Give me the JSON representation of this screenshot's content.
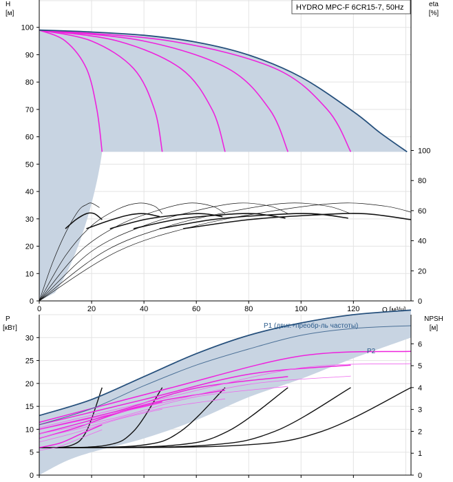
{
  "chart_data": [
    {
      "type": "line",
      "name": "head-curve-chart",
      "title": "HYDRO MPC-F 6CR15-7, 50Hz",
      "ylabel_left": {
        "name": "H",
        "unit": "[м]"
      },
      "ylabel_right": {
        "name": "eta",
        "unit": "[%]"
      },
      "xlabel": "Q [м³/ч]",
      "xlim": [
        0,
        142
      ],
      "ylim_left": [
        0,
        110
      ],
      "ylim_right": [
        0,
        100
      ],
      "y_right_range_on_left": [
        0,
        55
      ],
      "x_ticks": [
        0,
        20,
        40,
        60,
        80,
        100,
        120
      ],
      "y_ticks_left": [
        0,
        10,
        20,
        30,
        40,
        50,
        60,
        70,
        80,
        90,
        100
      ],
      "y_ticks_right": [
        0,
        20,
        40,
        60,
        80,
        100
      ],
      "head_envelope_max_curve": [
        [
          0,
          99
        ],
        [
          10,
          98.7
        ],
        [
          20,
          98.3
        ],
        [
          40,
          97.1
        ],
        [
          60,
          94.6
        ],
        [
          80,
          89.9
        ],
        [
          100,
          81.8
        ],
        [
          120,
          69.2
        ],
        [
          130,
          61.6
        ],
        [
          140.5,
          54.5
        ]
      ],
      "head_min_line": 54.5,
      "head_curves_pumps": [
        {
          "pumps": 1,
          "points": [
            [
              0,
              99
            ],
            [
              10,
              95
            ],
            [
              18,
              85
            ],
            [
              22,
              70
            ],
            [
              24,
              54.5
            ]
          ]
        },
        {
          "pumps": 2,
          "points": [
            [
              0,
              99
            ],
            [
              20,
              95
            ],
            [
              36,
              85
            ],
            [
              44,
              70
            ],
            [
              47,
              54.5
            ]
          ]
        },
        {
          "pumps": 3,
          "points": [
            [
              0,
              99
            ],
            [
              30,
              95
            ],
            [
              54,
              85
            ],
            [
              66,
              70
            ],
            [
              71,
              54.5
            ]
          ]
        },
        {
          "pumps": 4,
          "points": [
            [
              0,
              99
            ],
            [
              40,
              95
            ],
            [
              72,
              85
            ],
            [
              88,
              70
            ],
            [
              95,
              54.5
            ]
          ]
        },
        {
          "pumps": 5,
          "points": [
            [
              0,
              99
            ],
            [
              50,
              95
            ],
            [
              90,
              85
            ],
            [
              110,
              70
            ],
            [
              119,
              54.5
            ]
          ]
        }
      ],
      "efficiency_curves_percent": [
        {
          "series": "eta-max-1-pump",
          "points": [
            [
              0,
              0
            ],
            [
              5,
              25
            ],
            [
              10,
              45
            ],
            [
              15,
              60
            ],
            [
              18,
              64
            ],
            [
              20,
              65
            ],
            [
              23,
              62
            ]
          ]
        },
        {
          "series": "eta-1-pump",
          "points": [
            [
              10,
              48
            ],
            [
              14,
              54
            ],
            [
              18,
              58
            ],
            [
              21,
              58
            ],
            [
              24,
              54
            ]
          ]
        },
        {
          "series": "eta-max-2-pumps",
          "points": [
            [
              0,
              0
            ],
            [
              10,
              30
            ],
            [
              20,
              50
            ],
            [
              30,
              61
            ],
            [
              38,
              65
            ],
            [
              44,
              63
            ],
            [
              47,
              58
            ]
          ]
        },
        {
          "series": "eta-2-pumps",
          "points": [
            [
              18,
              48
            ],
            [
              26,
              53
            ],
            [
              34,
              57
            ],
            [
              40,
              58
            ],
            [
              46,
              56
            ]
          ]
        },
        {
          "series": "eta-max-3-pumps",
          "points": [
            [
              0,
              0
            ],
            [
              15,
              32
            ],
            [
              30,
              50
            ],
            [
              45,
              60
            ],
            [
              57,
              65
            ],
            [
              66,
              63
            ],
            [
              71,
              58
            ]
          ]
        },
        {
          "series": "eta-3-pumps",
          "points": [
            [
              27,
              48
            ],
            [
              40,
              54
            ],
            [
              52,
              57
            ],
            [
              62,
              58
            ],
            [
              70,
              56
            ]
          ]
        },
        {
          "series": "eta-max-4-pumps",
          "points": [
            [
              0,
              0
            ],
            [
              20,
              33
            ],
            [
              40,
              50
            ],
            [
              60,
              60
            ],
            [
              76,
              65
            ],
            [
              88,
              63
            ],
            [
              95,
              58
            ]
          ]
        },
        {
          "series": "eta-4-pumps",
          "points": [
            [
              36,
              48
            ],
            [
              52,
              54
            ],
            [
              68,
              57
            ],
            [
              82,
              58
            ],
            [
              94,
              55
            ]
          ]
        },
        {
          "series": "eta-max-5-pumps",
          "points": [
            [
              0,
              0
            ],
            [
              25,
              33
            ],
            [
              50,
              50
            ],
            [
              75,
              60
            ],
            [
              95,
              65
            ],
            [
              110,
              63
            ],
            [
              119,
              58
            ]
          ]
        },
        {
          "series": "eta-5-pumps",
          "points": [
            [
              46,
              48
            ],
            [
              66,
              54
            ],
            [
              86,
              57
            ],
            [
              104,
              58
            ],
            [
              118,
              55
            ]
          ]
        },
        {
          "series": "eta-max-6-pumps",
          "points": [
            [
              0,
              0
            ],
            [
              30,
              33
            ],
            [
              60,
              50
            ],
            [
              90,
              60
            ],
            [
              115,
              65
            ],
            [
              132,
              63
            ],
            [
              142,
              59
            ]
          ]
        },
        {
          "series": "eta-6-pumps",
          "points": [
            [
              55,
              48
            ],
            [
              80,
              54
            ],
            [
              104,
              57
            ],
            [
              124,
              58
            ],
            [
              142,
              54
            ]
          ]
        }
      ]
    },
    {
      "type": "line",
      "name": "power-npsh-chart",
      "ylabel_left": {
        "name": "P",
        "unit": "[кВт]"
      },
      "ylabel_right": {
        "name": "NPSH",
        "unit": "[м]"
      },
      "xlim": [
        0,
        142
      ],
      "ylim_left": [
        0,
        35
      ],
      "ylim_right": [
        0,
        7.33
      ],
      "y_ticks_left": [
        0,
        5,
        10,
        15,
        20,
        25,
        30
      ],
      "y_ticks_right": [
        0,
        1,
        2,
        3,
        4,
        5,
        6
      ],
      "annotations": [
        "P1 (двиг.+преобр-ль частоты)",
        "P2"
      ],
      "power_P1_envelope": [
        [
          0,
          13
        ],
        [
          20,
          16.5
        ],
        [
          40,
          21.5
        ],
        [
          60,
          26.5
        ],
        [
          80,
          30.5
        ],
        [
          100,
          33.2
        ],
        [
          120,
          35
        ],
        [
          142,
          36
        ]
      ],
      "power_P2_envelope": [
        [
          0,
          11
        ],
        [
          20,
          14.5
        ],
        [
          40,
          19.5
        ],
        [
          60,
          24
        ],
        [
          80,
          27.5
        ],
        [
          100,
          30.5
        ],
        [
          120,
          32
        ],
        [
          142,
          32.6
        ]
      ],
      "power_envelope_min": [
        [
          0,
          0
        ],
        [
          10,
          3
        ],
        [
          20,
          5
        ],
        [
          40,
          8
        ],
        [
          60,
          12
        ],
        [
          80,
          17
        ],
        [
          100,
          21
        ],
        [
          120,
          25.5
        ],
        [
          142,
          30
        ]
      ],
      "power_curves_pumps_P1": [
        {
          "pumps": 1,
          "points": [
            [
              0,
              6
            ],
            [
              8,
              7
            ],
            [
              16,
              9
            ],
            [
              24,
              11
            ]
          ]
        },
        {
          "pumps": 2,
          "points": [
            [
              0,
              8
            ],
            [
              15,
              10.5
            ],
            [
              30,
              13.5
            ],
            [
              47,
              16
            ]
          ]
        },
        {
          "pumps": 3,
          "points": [
            [
              0,
              9
            ],
            [
              20,
              12
            ],
            [
              45,
              16
            ],
            [
              71,
              18.5
            ]
          ]
        },
        {
          "pumps": 4,
          "points": [
            [
              0,
              10
            ],
            [
              30,
              14
            ],
            [
              60,
              19
            ],
            [
              95,
              21.5
            ]
          ]
        },
        {
          "pumps": 5,
          "points": [
            [
              0,
              11
            ],
            [
              40,
              16.5
            ],
            [
              80,
              22
            ],
            [
              119,
              24
            ]
          ]
        },
        {
          "pumps": 6,
          "points": [
            [
              0,
              11.5
            ],
            [
              50,
              19
            ],
            [
              100,
              26
            ],
            [
              142,
              27
            ]
          ]
        }
      ],
      "npsh_curves_m": [
        {
          "pumps": 1,
          "points": [
            [
              0,
              1.25
            ],
            [
              12,
              1.35
            ],
            [
              18,
              2.0
            ],
            [
              24,
              4.0
            ]
          ]
        },
        {
          "pumps": 2,
          "points": [
            [
              0,
              1.25
            ],
            [
              25,
              1.35
            ],
            [
              36,
              2.0
            ],
            [
              47,
              4.0
            ]
          ]
        },
        {
          "pumps": 3,
          "points": [
            [
              0,
              1.25
            ],
            [
              38,
              1.35
            ],
            [
              54,
              2.0
            ],
            [
              71,
              4.0
            ]
          ]
        },
        {
          "pumps": 4,
          "points": [
            [
              0,
              1.25
            ],
            [
              50,
              1.35
            ],
            [
              72,
              2.0
            ],
            [
              95,
              4.0
            ]
          ]
        },
        {
          "pumps": 5,
          "points": [
            [
              0,
              1.25
            ],
            [
              62,
              1.35
            ],
            [
              90,
              2.0
            ],
            [
              119,
              4.0
            ]
          ]
        },
        {
          "pumps": 6,
          "points": [
            [
              0,
              1.25
            ],
            [
              75,
              1.35
            ],
            [
              108,
              2.0
            ],
            [
              142,
              4.0
            ]
          ]
        }
      ]
    }
  ]
}
